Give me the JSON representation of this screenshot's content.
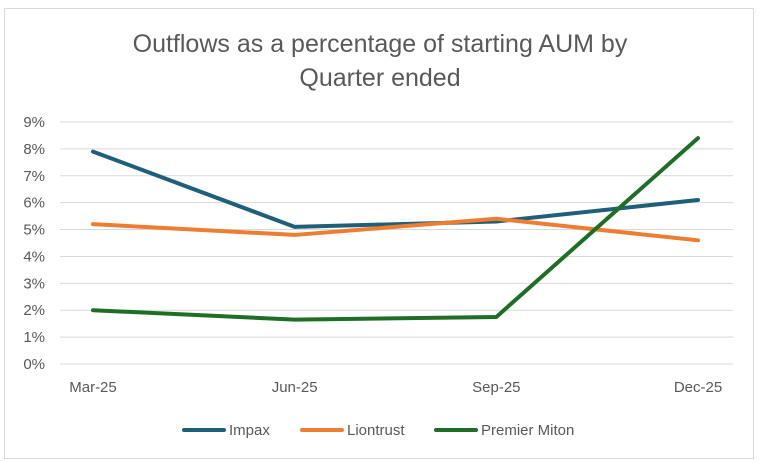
{
  "chart_data": {
    "type": "line",
    "title_lines": [
      "Outflows as a percentage of starting AUM by",
      "Quarter ended"
    ],
    "categories": [
      "Mar-25",
      "Jun-25",
      "Sep-25",
      "Dec-25"
    ],
    "y_ticks": [
      "0%",
      "1%",
      "2%",
      "3%",
      "4%",
      "5%",
      "6%",
      "7%",
      "8%",
      "9%"
    ],
    "ylim": [
      0,
      9
    ],
    "y_unit": "%",
    "grid": true,
    "legend_position": "bottom",
    "series": [
      {
        "name": "Impax",
        "color": "#1f5f7a",
        "values": [
          7.9,
          5.1,
          5.3,
          6.1
        ]
      },
      {
        "name": "Liontrust",
        "color": "#ed7d31",
        "values": [
          5.2,
          4.8,
          5.4,
          4.6
        ]
      },
      {
        "name": "Premier Miton",
        "color": "#1e6e26",
        "values": [
          2.0,
          1.65,
          1.75,
          8.4
        ]
      }
    ]
  }
}
